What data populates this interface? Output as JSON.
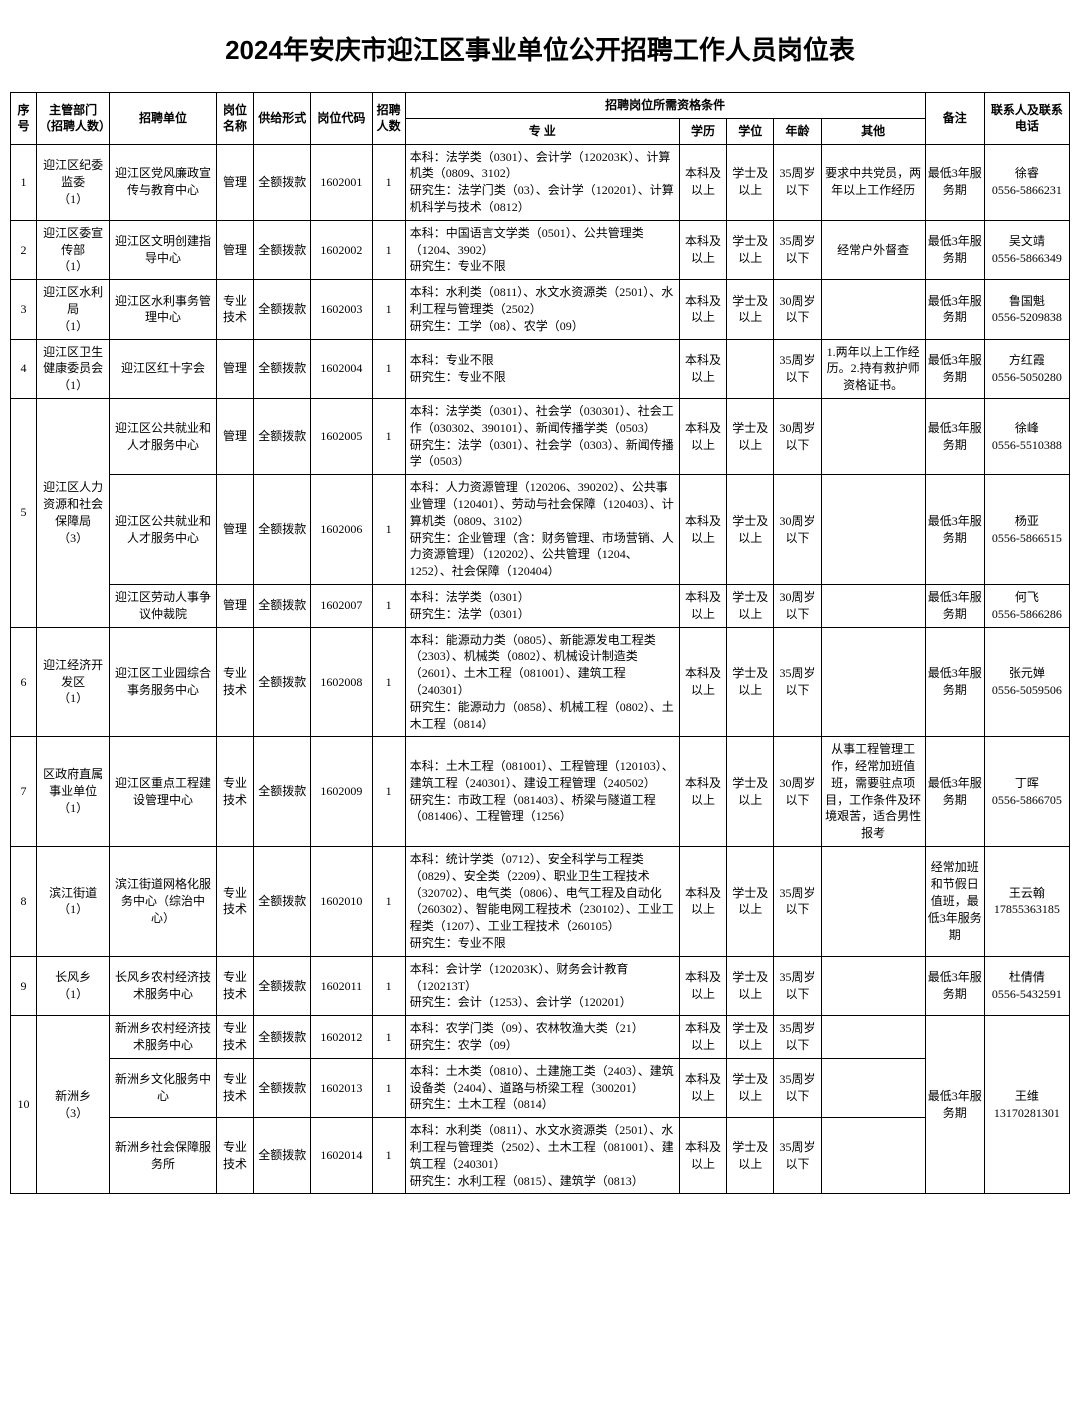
{
  "title": "2024年安庆市迎江区事业单位公开招聘工作人员岗位表",
  "headers": {
    "seq": "序号",
    "dept": "主管部门（招聘人数）",
    "unit": "招聘单位",
    "pos": "岗位名称",
    "fund": "供给形式",
    "code": "岗位代码",
    "num": "招聘人数",
    "qualGroup": "招聘岗位所需资格条件",
    "major": "专    业",
    "edu": "学历",
    "deg": "学位",
    "age": "年龄",
    "other": "其他",
    "note": "备注",
    "contact": "联系人及联系电话"
  },
  "rows": [
    {
      "seq": "1",
      "dept": "迎江区纪委监委\n（1）",
      "unit": "迎江区党风廉政宣传与教育中心",
      "pos": "管理",
      "fund": "全额拨款",
      "code": "1602001",
      "num": "1",
      "major": "本科：法学类（0301）、会计学（120203K）、计算机类（0809、3102）\n研究生：法学门类（03）、会计学（120201）、计算机科学与技术（0812）",
      "edu": "本科及以上",
      "deg": "学士及以上",
      "age": "35周岁以下",
      "other": "要求中共党员，两年以上工作经历",
      "note": "最低3年服务期",
      "contact": "徐睿\n0556-5866231"
    },
    {
      "seq": "2",
      "dept": "迎江区委宣传部\n（1）",
      "unit": "迎江区文明创建指导中心",
      "pos": "管理",
      "fund": "全额拨款",
      "code": "1602002",
      "num": "1",
      "major": "本科：中国语言文学类（0501）、公共管理类（1204、3902）\n研究生：专业不限",
      "edu": "本科及以上",
      "deg": "学士及以上",
      "age": "35周岁以下",
      "other": "经常户外督查",
      "note": "最低3年服务期",
      "contact": "吴文靖\n0556-5866349"
    },
    {
      "seq": "3",
      "dept": "迎江区水利局\n（1）",
      "unit": "迎江区水利事务管理中心",
      "pos": "专业技术",
      "fund": "全额拨款",
      "code": "1602003",
      "num": "1",
      "major": "本科：水利类（0811）、水文水资源类（2501）、水利工程与管理类（2502）\n研究生：工学（08）、农学（09）",
      "edu": "本科及以上",
      "deg": "学士及以上",
      "age": "30周岁以下",
      "other": "",
      "note": "最低3年服务期",
      "contact": "鲁国魁\n0556-5209838"
    },
    {
      "seq": "4",
      "dept": "迎江区卫生健康委员会\n（1）",
      "unit": "迎江区红十字会",
      "pos": "管理",
      "fund": "全额拨款",
      "code": "1602004",
      "num": "1",
      "major": "本科：专业不限\n研究生：专业不限",
      "edu": "本科及以上",
      "deg": "",
      "age": "35周岁以下",
      "other": "1.两年以上工作经历。2.持有救护师资格证书。",
      "note": "最低3年服务期",
      "contact": "方红霞\n0556-5050280"
    },
    {
      "seq": "5",
      "deptSpan": 3,
      "dept": "迎江区人力资源和社会保障局\n（3）",
      "unit": "迎江区公共就业和人才服务中心",
      "pos": "管理",
      "fund": "全额拨款",
      "code": "1602005",
      "num": "1",
      "major": "本科：法学类（0301）、社会学（030301）、社会工作（030302、390101）、新闻传播学类（0503）\n研究生：法学（0301）、社会学（0303）、新闻传播学（0503）",
      "edu": "本科及以上",
      "deg": "学士及以上",
      "age": "30周岁以下",
      "other": "",
      "note": "最低3年服务期",
      "contact": "徐峰\n0556-5510388"
    },
    {
      "unit": "迎江区公共就业和人才服务中心",
      "pos": "管理",
      "fund": "全额拨款",
      "code": "1602006",
      "num": "1",
      "major": "本科：人力资源管理（120206、390202）、公共事业管理（120401）、劳动与社会保障（120403）、计算机类（0809、3102）\n研究生：企业管理（含：财务管理、市场营销、人力资源管理）（120202）、公共管理（1204、1252）、社会保障（120404）",
      "edu": "本科及以上",
      "deg": "学士及以上",
      "age": "30周岁以下",
      "other": "",
      "note": "最低3年服务期",
      "contact": "杨亚\n0556-5866515"
    },
    {
      "unit": "迎江区劳动人事争议仲裁院",
      "pos": "管理",
      "fund": "全额拨款",
      "code": "1602007",
      "num": "1",
      "major": "本科：法学类（0301）\n研究生：法学（0301）",
      "edu": "本科及以上",
      "deg": "学士及以上",
      "age": "30周岁以下",
      "other": "",
      "note": "最低3年服务期",
      "contact": "何飞\n0556-5866286"
    },
    {
      "seq": "6",
      "dept": "迎江经济开发区\n（1）",
      "unit": "迎江区工业园综合事务服务中心",
      "pos": "专业技术",
      "fund": "全额拨款",
      "code": "1602008",
      "num": "1",
      "major": "本科：能源动力类（0805）、新能源发电工程类（2303）、机械类（0802）、机械设计制造类（2601）、土木工程（081001）、建筑工程（240301）\n研究生：能源动力（0858）、机械工程（0802）、土木工程（0814）",
      "edu": "本科及以上",
      "deg": "学士及以上",
      "age": "35周岁以下",
      "other": "",
      "note": "最低3年服务期",
      "contact": "张元婵\n0556-5059506"
    },
    {
      "seq": "7",
      "dept": "区政府直属事业单位\n（1）",
      "unit": "迎江区重点工程建设管理中心",
      "pos": "专业技术",
      "fund": "全额拨款",
      "code": "1602009",
      "num": "1",
      "major": "本科：土木工程（081001）、工程管理（120103）、建筑工程（240301）、建设工程管理（240502）\n研究生：市政工程（081403）、桥梁与隧道工程（081406）、工程管理（1256）",
      "edu": "本科及以上",
      "deg": "学士及以上",
      "age": "30周岁以下",
      "other": "从事工程管理工作，经常加班值班，需要驻点项目，工作条件及环境艰苦，适合男性报考",
      "note": "最低3年服务期",
      "contact": "丁晖\n0556-5866705"
    },
    {
      "seq": "8",
      "dept": "滨江街道\n（1）",
      "unit": "滨江街道网格化服务中心（综治中心）",
      "pos": "专业技术",
      "fund": "全额拨款",
      "code": "1602010",
      "num": "1",
      "major": "本科：统计学类（0712）、安全科学与工程类（0829）、安全类（2209）、职业卫生工程技术（320702）、电气类（0806）、电气工程及自动化（260302）、智能电网工程技术（230102）、工业工程类（1207）、工业工程技术（260105）\n研究生：专业不限",
      "edu": "本科及以上",
      "deg": "学士及以上",
      "age": "35周岁以下",
      "other": "",
      "note": "经常加班和节假日值班，最低3年服务期",
      "contact": "王云翰\n17855363185"
    },
    {
      "seq": "9",
      "dept": "长风乡\n（1）",
      "unit": "长风乡农村经济技术服务中心",
      "pos": "专业技术",
      "fund": "全额拨款",
      "code": "1602011",
      "num": "1",
      "major": "本科：会计学（120203K）、财务会计教育（120213T）\n研究生：会计（1253）、会计学（120201）",
      "edu": "本科及以上",
      "deg": "学士及以上",
      "age": "35周岁以下",
      "other": "",
      "note": "最低3年服务期",
      "contact": "杜倩倩\n0556-5432591"
    },
    {
      "seq": "10",
      "deptSpan": 3,
      "dept": "新洲乡\n（3）",
      "unit": "新洲乡农村经济技术服务中心",
      "pos": "专业技术",
      "fund": "全额拨款",
      "code": "1602012",
      "num": "1",
      "major": "本科：农学门类（09）、农林牧渔大类（21）\n研究生：农学（09）",
      "edu": "本科及以上",
      "deg": "学士及以上",
      "age": "35周岁以下",
      "other": "",
      "noteSpan": 3,
      "note": "最低3年服务期",
      "contactSpan": 3,
      "contact": "王维\n13170281301"
    },
    {
      "unit": "新洲乡文化服务中心",
      "pos": "专业技术",
      "fund": "全额拨款",
      "code": "1602013",
      "num": "1",
      "major": "本科：土木类（0810）、土建施工类（2403）、建筑设备类（2404）、道路与桥梁工程（300201）\n研究生：土木工程（0814）",
      "edu": "本科及以上",
      "deg": "学士及以上",
      "age": "35周岁以下",
      "other": ""
    },
    {
      "unit": "新洲乡社会保障服务所",
      "pos": "专业技术",
      "fund": "全额拨款",
      "code": "1602014",
      "num": "1",
      "major": "本科：水利类（0811）、水文水资源类（2501）、水利工程与管理类（2502）、土木工程（081001）、建筑工程（240301）\n研究生：水利工程（0815）、建筑学（0813）",
      "edu": "本科及以上",
      "deg": "学士及以上",
      "age": "35周岁以下",
      "other": ""
    }
  ]
}
